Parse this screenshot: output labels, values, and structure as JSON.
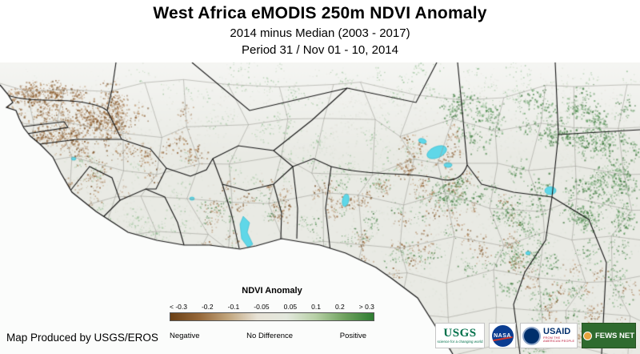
{
  "header": {
    "title": "West Africa eMODIS 250m NDVI Anomaly",
    "subtitle": "2014 minus Median (2003 - 2017)",
    "period": "Period 31 / Nov 01 - 10, 2014"
  },
  "legend": {
    "title": "NDVI Anomaly",
    "ticks": [
      "< -0.3",
      "-0.2",
      "-0.1",
      "-0.05",
      "0.05",
      "0.1",
      "0.2",
      "> 0.3"
    ],
    "categories": [
      "Negative",
      "No Difference",
      "Positive"
    ],
    "gradient": [
      "#6b4015",
      "#96683a",
      "#c2a67e",
      "#e7e2d6",
      "#e3e8dd",
      "#b7d0a6",
      "#6fa25f",
      "#2e7d32"
    ]
  },
  "footer": {
    "credit": "Map Produced by USGS/EROS"
  },
  "logos": {
    "usgs": {
      "label": "USGS",
      "tagline": "science for a changing world",
      "color": "#00704a"
    },
    "nasa": {
      "label": "NASA",
      "color": "#0b3d91"
    },
    "usaid": {
      "label": "USAID",
      "tagline": "FROM THE AMERICAN PEOPLE",
      "color": "#002f6c",
      "accent": "#ba0c2f"
    },
    "fewsnet": {
      "label": "FEWS NET",
      "color": "#2f6b2f"
    }
  },
  "icons": {
    "fews_globe": "globe-icon",
    "usaid_seal": "seal-icon",
    "nasa_swoosh": "swoosh-icon"
  },
  "map": {
    "colors": {
      "ocean": "#fbfcfb",
      "land": "#e9eae4",
      "water": "#5fd7e8",
      "water_edge": "#2fb6c9",
      "country_border": "#141414",
      "admin_border": "#97978f",
      "negative_browns": [
        "#a3764a",
        "#8a5a2e",
        "#b98f63",
        "#6f4518"
      ],
      "positive_greens": [
        "#5d9b5d",
        "#3e7d3e",
        "#7fb27f",
        "#2e6b2e"
      ],
      "light_greens": [
        "#9cc49c",
        "#b5d2ae",
        "#88b888"
      ],
      "neutral": [
        "#dfe3da",
        "#e2dfd7",
        "#d9dfd2"
      ]
    }
  }
}
